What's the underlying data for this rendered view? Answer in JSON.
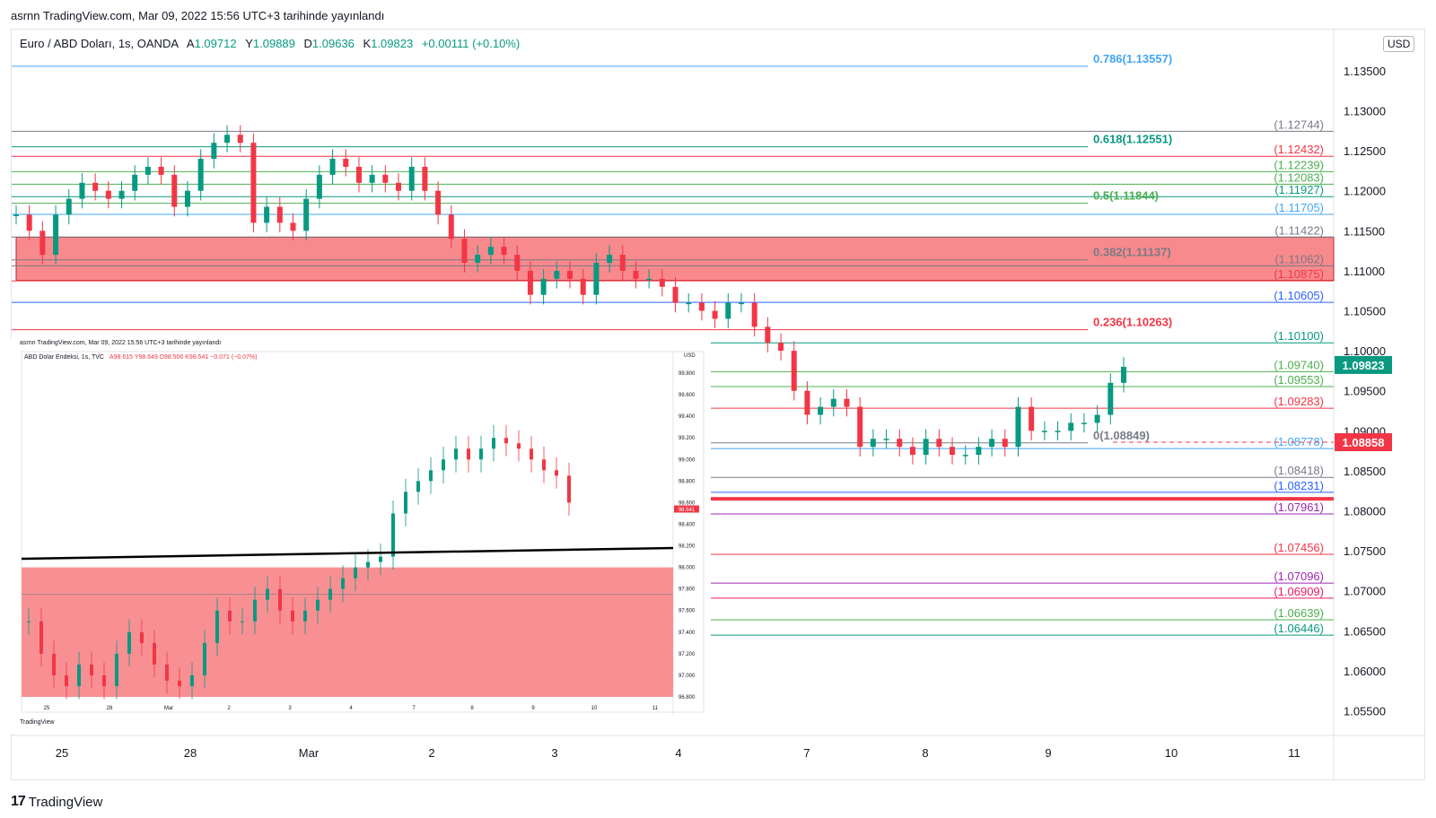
{
  "header": {
    "published": "asrnn TradingView.com, Mar 09, 2022 15:56 UTC+3 tarihinde yayınlandı"
  },
  "main": {
    "symbol": "Euro / ABD Doları, 1s, OANDA",
    "ohlc": {
      "o_label": "A",
      "o": "1.09712",
      "h_label": "Y",
      "h": "1.09889",
      "l_label": "D",
      "l": "1.09636",
      "c_label": "K",
      "c": "1.09823",
      "change": "+0.00111 (+0.10%)"
    },
    "currency": "USD",
    "last_price_tag": "1.09823",
    "marker_price_tag": "1.08858"
  },
  "footer": {
    "brand": "TradingView",
    "logo": "17"
  },
  "inset": {
    "published": "asrnn TradingView.com, Mar 09, 2022 15:56 UTC+3 tarihinde yayınlandı",
    "symbol": "ABD Dolar Endeksi, 1s, TVC",
    "ohlc": "A98.615  Y98.649  D98.506  K98.541  −0.071 (−0.07%)",
    "currency": "USD",
    "price_tag": "98.541",
    "brand": "TradingView"
  },
  "chart_data": [
    {
      "type": "candlestick",
      "title": "Euro / ABD Doları, 1s, OANDA",
      "ylim": [
        1.053,
        1.1395
      ],
      "y_ticks": [
        "1.13500",
        "1.13000",
        "1.12500",
        "1.12000",
        "1.11500",
        "1.11000",
        "1.10500",
        "1.10000",
        "1.09500",
        "1.09000",
        "1.08500",
        "1.08000",
        "1.07500",
        "1.07000",
        "1.06500",
        "1.06000",
        "1.05500"
      ],
      "x_ticks": [
        "25",
        "28",
        "Mar",
        "2",
        "3",
        "4",
        "7",
        "8",
        "9",
        "10",
        "11"
      ],
      "fib_levels": [
        {
          "label": "0.786(1.13557)",
          "value": 1.13557,
          "color": "#42a5f5"
        },
        {
          "label": "0.618(1.12551)",
          "value": 1.12551,
          "color": "#089981"
        },
        {
          "label": "0.5(1.11844)",
          "value": 1.11844,
          "color": "#4caf50"
        },
        {
          "label": "0.382(1.11137)",
          "value": 1.11137,
          "color": "#787b86"
        },
        {
          "label": "0.236(1.10263)",
          "value": 1.10263,
          "color": "#f23645"
        },
        {
          "label": "0(1.08849)",
          "value": 1.08849,
          "color": "#787b86"
        }
      ],
      "levels": [
        {
          "label": "(1.12744)",
          "value": 1.12744,
          "color": "#787b86"
        },
        {
          "label": "(1.12432)",
          "value": 1.12432,
          "color": "#f23645"
        },
        {
          "label": "(1.12239)",
          "value": 1.12239,
          "color": "#4caf50"
        },
        {
          "label": "(1.12083)",
          "value": 1.12083,
          "color": "#4caf50"
        },
        {
          "label": "(1.11927)",
          "value": 1.11927,
          "color": "#089981"
        },
        {
          "label": "(1.11705)",
          "value": 1.11705,
          "color": "#42a5f5"
        },
        {
          "label": "(1.11422)",
          "value": 1.11422,
          "color": "#787b86"
        },
        {
          "label": "(1.11062)",
          "value": 1.11062,
          "color": "#787b86"
        },
        {
          "label": "(1.10875)",
          "value": 1.10875,
          "color": "#f23645"
        },
        {
          "label": "(1.10605)",
          "value": 1.10605,
          "color": "#2962ff"
        },
        {
          "label": "(1.10100)",
          "value": 1.101,
          "color": "#089981"
        },
        {
          "label": "(1.09740)",
          "value": 1.0974,
          "color": "#4caf50"
        },
        {
          "label": "(1.09553)",
          "value": 1.09553,
          "color": "#4caf50"
        },
        {
          "label": "(1.09283)",
          "value": 1.09283,
          "color": "#f23645"
        },
        {
          "label": "(1.08778)",
          "value": 1.08778,
          "color": "#42a5f5"
        },
        {
          "label": "(1.08418)",
          "value": 1.08418,
          "color": "#787b86"
        },
        {
          "label": "(1.08231)",
          "value": 1.08231,
          "color": "#2962ff"
        },
        {
          "label": "(1.07961)",
          "value": 1.07961,
          "color": "#9c27b0"
        },
        {
          "label": "(1.07456)",
          "value": 1.07456,
          "color": "#f23645"
        },
        {
          "label": "(1.07096)",
          "value": 1.07096,
          "color": "#9c27b0"
        },
        {
          "label": "(1.06909)",
          "value": 1.06909,
          "color": "#e91e63"
        },
        {
          "label": "(1.06639)",
          "value": 1.06639,
          "color": "#4caf50"
        },
        {
          "label": "(1.06446)",
          "value": 1.06446,
          "color": "#089981"
        }
      ],
      "zone": {
        "top": 1.1142,
        "bottom": 1.1088,
        "color": "#f77c80"
      },
      "support_line": {
        "value": 1.0815,
        "color": "#f23645"
      },
      "last_price": 1.09823,
      "marker_price": 1.08858,
      "candles_close": [
        1.117,
        1.115,
        1.112,
        1.117,
        1.119,
        1.121,
        1.12,
        1.119,
        1.12,
        1.122,
        1.123,
        1.122,
        1.118,
        1.12,
        1.124,
        1.126,
        1.127,
        1.126,
        1.116,
        1.118,
        1.116,
        1.115,
        1.119,
        1.122,
        1.124,
        1.123,
        1.121,
        1.122,
        1.121,
        1.12,
        1.123,
        1.12,
        1.117,
        1.114,
        1.111,
        1.112,
        1.113,
        1.112,
        1.11,
        1.107,
        1.109,
        1.11,
        1.109,
        1.107,
        1.111,
        1.112,
        1.11,
        1.109,
        1.109,
        1.108,
        1.106,
        1.106,
        1.105,
        1.104,
        1.106,
        1.106,
        1.103,
        1.101,
        1.1,
        1.095,
        1.092,
        1.093,
        1.094,
        1.093,
        1.088,
        1.089,
        1.089,
        1.088,
        1.087,
        1.089,
        1.088,
        1.087,
        1.087,
        1.088,
        1.089,
        1.088,
        1.093,
        1.09,
        1.09,
        1.09,
        1.091,
        1.091,
        1.092,
        1.096,
        1.098
      ]
    },
    {
      "type": "candlestick",
      "title": "ABD Dolar Endeksi, 1s, TVC",
      "ylim": [
        96.8,
        100.0
      ],
      "y_ticks": [
        "99.800",
        "99.600",
        "99.400",
        "99.200",
        "99.000",
        "98.800",
        "98.600",
        "98.400",
        "98.200",
        "98.000",
        "97.800",
        "97.600",
        "97.400",
        "97.200",
        "97.000",
        "96.800"
      ],
      "x_ticks": [
        "25",
        "28",
        "Mar",
        "2",
        "3",
        "4",
        "7",
        "8",
        "9",
        "10",
        "11"
      ],
      "trendline": {
        "from": 98.08,
        "to": 98.18,
        "color": "#000000"
      },
      "zone": {
        "top": 98.0,
        "bottom": 96.8,
        "color": "#f77c80"
      },
      "last_price": 98.541,
      "candles_close": [
        97.5,
        97.2,
        97.0,
        96.9,
        97.1,
        97.0,
        96.9,
        97.2,
        97.4,
        97.3,
        97.1,
        96.95,
        96.9,
        97.0,
        97.3,
        97.6,
        97.5,
        97.5,
        97.7,
        97.8,
        97.6,
        97.5,
        97.6,
        97.7,
        97.8,
        97.9,
        98.0,
        98.05,
        98.1,
        98.5,
        98.7,
        98.8,
        98.9,
        99.0,
        99.1,
        99.0,
        99.1,
        99.2,
        99.15,
        99.1,
        99.0,
        98.9,
        98.85,
        98.6
      ]
    }
  ]
}
